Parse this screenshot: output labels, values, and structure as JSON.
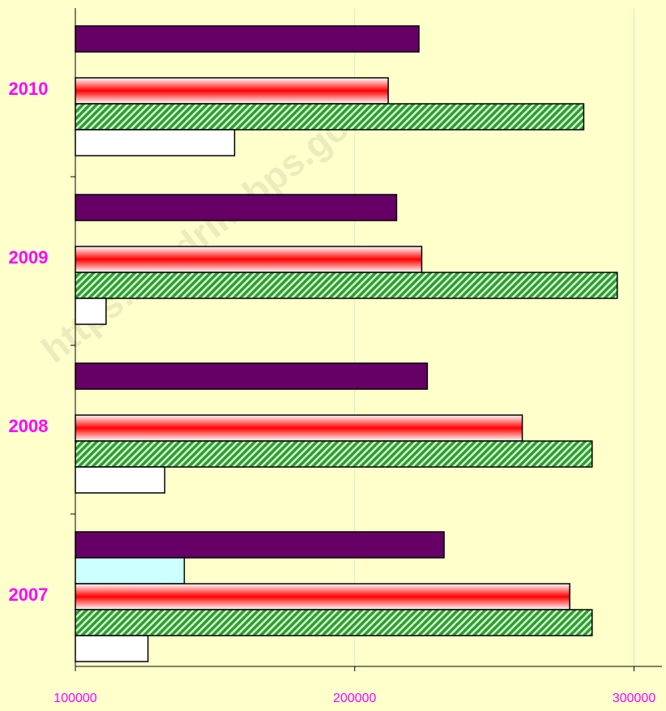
{
  "chart_data": {
    "type": "hbar",
    "watermark": "https://kedrikabps.go",
    "categories": [
      "2007",
      "2008",
      "2009",
      "2010"
    ],
    "series": [
      {
        "color": "#660066",
        "pattern": "solid",
        "values": [
          232000,
          226000,
          215000,
          223000
        ]
      },
      {
        "color": "#ccffff",
        "pattern": "solid",
        "values": [
          139000,
          null,
          null,
          null
        ]
      },
      {
        "color": "#ff0000",
        "pattern": "gradient",
        "values": [
          277000,
          260000,
          224000,
          212000
        ]
      },
      {
        "color": "#339933",
        "pattern": "hatch",
        "values": [
          285000,
          285000,
          294000,
          282000
        ]
      },
      {
        "color": "#ffffff",
        "pattern": "solid",
        "values": [
          126000,
          132000,
          111000,
          157000
        ]
      }
    ],
    "xlim": [
      100000,
      310000
    ],
    "xticks": [
      100000,
      200000,
      300000
    ],
    "grid": true,
    "background": "#ffffcc"
  }
}
